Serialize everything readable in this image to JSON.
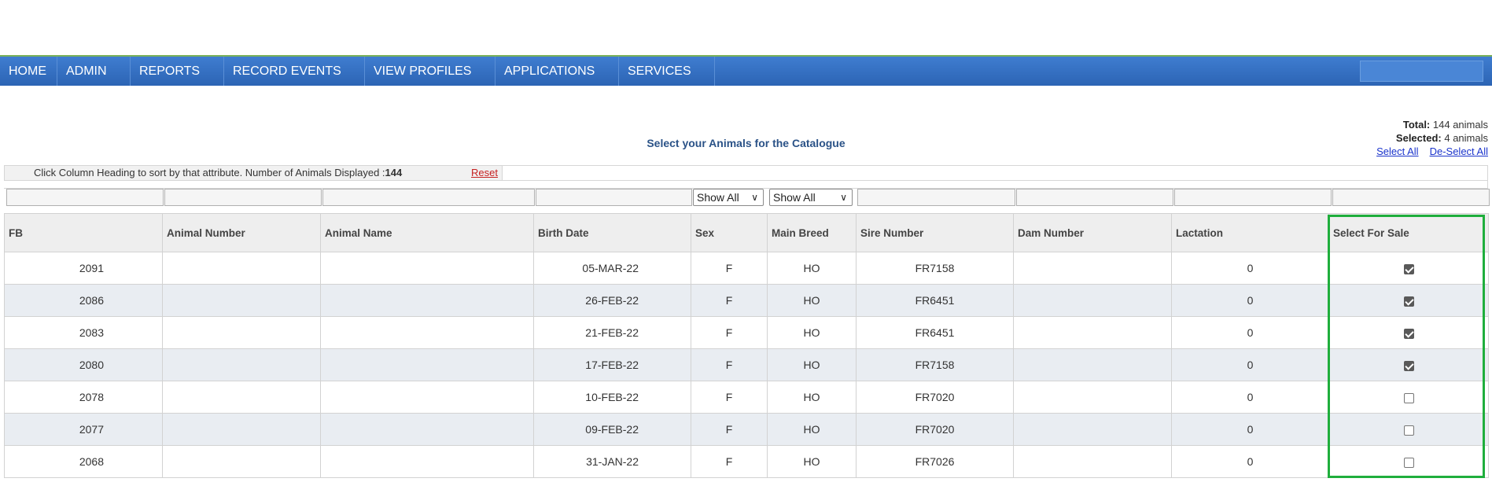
{
  "nav": {
    "items": [
      "HOME",
      "ADMIN",
      "REPORTS",
      "RECORD EVENTS",
      "VIEW PROFILES",
      "APPLICATIONS",
      "SERVICES"
    ]
  },
  "page_title": "Select your Animals for the Catalogue",
  "summary": {
    "total_label": "Total:",
    "total_value": "144 animals",
    "selected_label": "Selected:",
    "selected_value": "4 animals",
    "select_all": "Select All",
    "deselect_all": "De-Select All"
  },
  "info": {
    "text": "Click Column Heading to sort by that attribute. Number of Animals Displayed :",
    "count": "144",
    "reset": "Reset"
  },
  "filters": {
    "sex": "Show All",
    "breed": "Show All"
  },
  "table": {
    "headers": [
      "FB",
      "Animal Number",
      "Animal Name",
      "Birth Date",
      "Sex",
      "Main Breed",
      "Sire Number",
      "Dam Number",
      "Lactation",
      "Select For Sale"
    ],
    "rows": [
      {
        "fb": "2091",
        "animal_number": "",
        "animal_name": "",
        "birth_date": "05-MAR-22",
        "sex": "F",
        "breed": "HO",
        "sire": "FR7158",
        "dam": "",
        "lactation": "0",
        "selected": true
      },
      {
        "fb": "2086",
        "animal_number": "",
        "animal_name": "",
        "birth_date": "26-FEB-22",
        "sex": "F",
        "breed": "HO",
        "sire": "FR6451",
        "dam": "",
        "lactation": "0",
        "selected": true
      },
      {
        "fb": "2083",
        "animal_number": "",
        "animal_name": "",
        "birth_date": "21-FEB-22",
        "sex": "F",
        "breed": "HO",
        "sire": "FR6451",
        "dam": "",
        "lactation": "0",
        "selected": true
      },
      {
        "fb": "2080",
        "animal_number": "",
        "animal_name": "",
        "birth_date": "17-FEB-22",
        "sex": "F",
        "breed": "HO",
        "sire": "FR7158",
        "dam": "",
        "lactation": "0",
        "selected": true
      },
      {
        "fb": "2078",
        "animal_number": "",
        "animal_name": "",
        "birth_date": "10-FEB-22",
        "sex": "F",
        "breed": "HO",
        "sire": "FR7020",
        "dam": "",
        "lactation": "0",
        "selected": false
      },
      {
        "fb": "2077",
        "animal_number": "",
        "animal_name": "",
        "birth_date": "09-FEB-22",
        "sex": "F",
        "breed": "HO",
        "sire": "FR7020",
        "dam": "",
        "lactation": "0",
        "selected": false
      },
      {
        "fb": "2068",
        "animal_number": "",
        "animal_name": "",
        "birth_date": "31-JAN-22",
        "sex": "F",
        "breed": "HO",
        "sire": "FR7026",
        "dam": "",
        "lactation": "0",
        "selected": false
      }
    ]
  },
  "colors": {
    "nav_bg": "#2f6cc0",
    "highlight": "#1fae3c",
    "title": "#2a5287"
  }
}
